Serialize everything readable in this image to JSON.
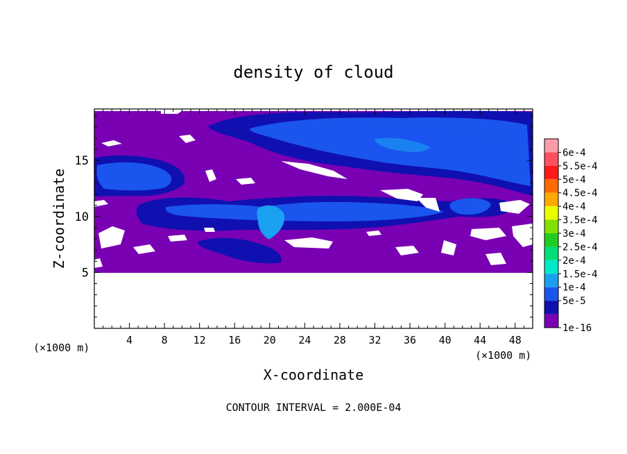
{
  "chart_data": {
    "type": "heatmap",
    "title": "density of cloud",
    "xlabel": "X-coordinate",
    "ylabel": "Z-coordinate",
    "x_unit": "(×1000 m)",
    "y_unit": "(×1000 m)",
    "xlim": [
      0,
      50
    ],
    "ylim": [
      0,
      19.6
    ],
    "x_ticks": [
      "4",
      "8",
      "12",
      "16",
      "20",
      "24",
      "28",
      "32",
      "36",
      "40",
      "44",
      "48"
    ],
    "y_ticks": [
      "5",
      "10",
      "15"
    ],
    "footer": "CONTOUR INTERVAL = 2.000E-04",
    "colorbar": {
      "labels": [
        "6e-4",
        "5.5e-4",
        "5e-4",
        "4.5e-4",
        "4e-4",
        "3.5e-4",
        "3e-4",
        "2.5e-4",
        "2e-4",
        "1.5e-4",
        "1e-4",
        "5e-5",
        "1e-16"
      ],
      "colors": [
        "#ff9aa8",
        "#ff5060",
        "#ff1a1a",
        "#ff6a00",
        "#ffaa00",
        "#e8ff00",
        "#80e000",
        "#22cc22",
        "#00dd77",
        "#00e8c8",
        "#1aa0f0",
        "#1a55ee",
        "#1010b0",
        "#7a00b4"
      ]
    },
    "regions": [
      {
        "name": "cloud-base",
        "z_bottom": 5,
        "value": "1e-16"
      },
      {
        "name": "upper-blue-band",
        "x": [
          12,
          50
        ],
        "z": [
          13,
          19
        ],
        "peak": "1.5e-4"
      },
      {
        "name": "left-blue-plume",
        "x": [
          0,
          12
        ],
        "z": [
          11,
          16
        ],
        "peak": "1e-4"
      },
      {
        "name": "mid-blue-band",
        "x": [
          5,
          48
        ],
        "z": [
          9,
          12
        ],
        "peak": "1.5e-4"
      },
      {
        "name": "central-updraft",
        "x": [
          17,
          21
        ],
        "z": [
          7,
          11
        ],
        "peak": "1.5e-4"
      }
    ]
  }
}
